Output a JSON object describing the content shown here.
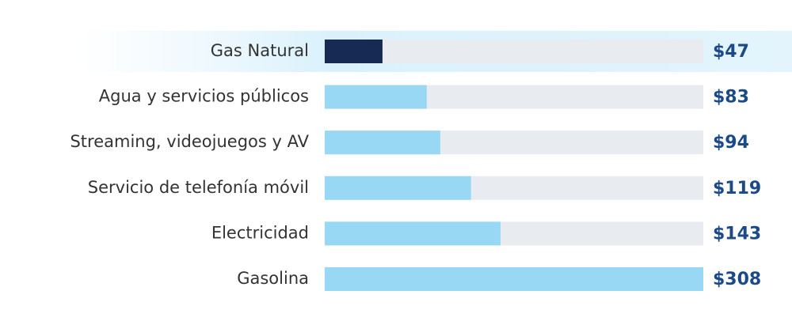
{
  "chart_data": {
    "type": "bar",
    "orientation": "horizontal",
    "categories": [
      "Gas Natural",
      "Agua y servicios públicos",
      "Streaming, videojuegos y AV",
      "Servicio de telefonía móvil",
      "Electricidad",
      "Gasolina"
    ],
    "values": [
      47,
      83,
      94,
      119,
      143,
      308
    ],
    "value_labels": [
      "$47",
      "$83",
      "$94",
      "$119",
      "$143",
      "$308"
    ],
    "color": "#99d8f5",
    "highlight_index": 0,
    "highlight_color": "#172a53",
    "track_color": "#e8ebf0"
  }
}
